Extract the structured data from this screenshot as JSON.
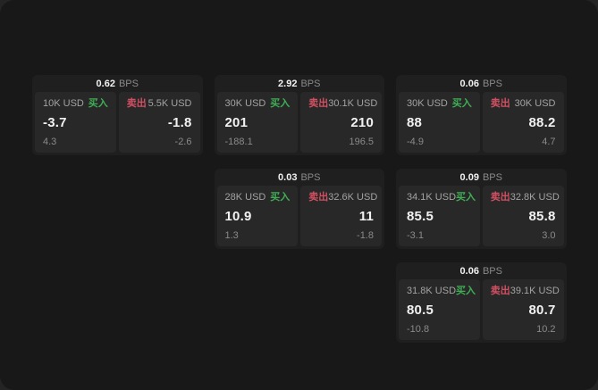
{
  "labels": {
    "bps_unit": "BPS",
    "buy": "买入",
    "sell": "卖出"
  },
  "colors": {
    "backdrop": "#242424",
    "window_bg": "#181818",
    "card_bg": "#1f1f1f",
    "panel_bg": "#282828",
    "buy_green": "#3fae54",
    "sell_red": "#d14f62"
  },
  "cards": [
    {
      "bps": "0.62",
      "buy": {
        "amount": "10K USD",
        "value": "-3.7",
        "delta": "4.3"
      },
      "sell": {
        "amount": "5.5K USD",
        "value": "-1.8",
        "delta": "-2.6"
      }
    },
    {
      "bps": "2.92",
      "buy": {
        "amount": "30K USD",
        "value": "201",
        "delta": "-188.1"
      },
      "sell": {
        "amount": "30.1K USD",
        "value": "210",
        "delta": "196.5"
      }
    },
    {
      "bps": "0.06",
      "buy": {
        "amount": "30K USD",
        "value": "88",
        "delta": "-4.9"
      },
      "sell": {
        "amount": "30K USD",
        "value": "88.2",
        "delta": "4.7"
      }
    },
    {
      "bps": "0.03",
      "buy": {
        "amount": "28K USD",
        "value": "10.9",
        "delta": "1.3"
      },
      "sell": {
        "amount": "32.6K USD",
        "value": "11",
        "delta": "-1.8"
      }
    },
    {
      "bps": "0.09",
      "buy": {
        "amount": "34.1K USD",
        "value": "85.5",
        "delta": "-3.1"
      },
      "sell": {
        "amount": "32.8K USD",
        "value": "85.8",
        "delta": "3.0"
      }
    },
    {
      "bps": "0.06",
      "buy": {
        "amount": "31.8K USD",
        "value": "80.5",
        "delta": "-10.8"
      },
      "sell": {
        "amount": "39.1K USD",
        "value": "80.7",
        "delta": "10.2"
      }
    }
  ]
}
